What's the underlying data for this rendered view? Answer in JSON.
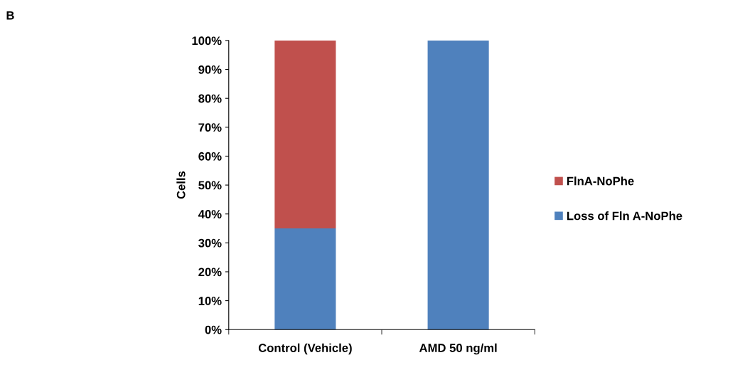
{
  "chart_data": {
    "type": "bar",
    "stacked": true,
    "ylabel": "Cells",
    "annotations": [
      "B"
    ],
    "categories": [
      "Control (Vehicle)",
      "AMD 50 ng/ml"
    ],
    "series": [
      {
        "name": "Loss of Fln A-NoPhe",
        "color": "#4f81bd",
        "values": [
          35,
          100
        ]
      },
      {
        "name": "FlnA-NoPhe",
        "color": "#c0504d",
        "values": [
          65,
          0
        ]
      }
    ],
    "ylim": [
      0,
      100
    ],
    "yticks": [
      {
        "value": 0,
        "label": "0%"
      },
      {
        "value": 10,
        "label": "10%"
      },
      {
        "value": 20,
        "label": "20%"
      },
      {
        "value": 30,
        "label": "30%"
      },
      {
        "value": 40,
        "label": "40%"
      },
      {
        "value": 50,
        "label": "50%"
      },
      {
        "value": 60,
        "label": "60%"
      },
      {
        "value": 70,
        "label": "70%"
      },
      {
        "value": 80,
        "label": "80%"
      },
      {
        "value": 90,
        "label": "90%"
      },
      {
        "value": 100,
        "label": "100%"
      }
    ],
    "grid": false,
    "legend": "right"
  }
}
